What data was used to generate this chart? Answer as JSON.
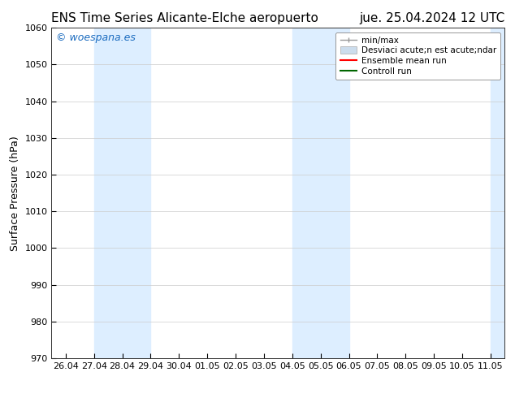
{
  "title_left": "ENS Time Series Alicante-Elche aeropuerto",
  "title_right": "jue. 25.04.2024 12 UTC",
  "ylabel": "Surface Pressure (hPa)",
  "ylim": [
    970,
    1060
  ],
  "yticks": [
    970,
    980,
    990,
    1000,
    1010,
    1020,
    1030,
    1040,
    1050,
    1060
  ],
  "xtick_labels": [
    "26.04",
    "27.04",
    "28.04",
    "29.04",
    "30.04",
    "01.05",
    "02.05",
    "03.05",
    "04.05",
    "05.05",
    "06.05",
    "07.05",
    "08.05",
    "09.05",
    "10.05",
    "11.05"
  ],
  "shade_regions": [
    {
      "xstart": 1,
      "xend": 3,
      "color": "#ddeeff"
    },
    {
      "xstart": 8,
      "xend": 10,
      "color": "#ddeeff"
    },
    {
      "xstart": 15,
      "xend": 16,
      "color": "#ddeeff"
    }
  ],
  "watermark_text": "© woespana.es",
  "watermark_color": "#1a6bbf",
  "background_color": "#ffffff",
  "legend_label_minmax": "min/max",
  "legend_label_std": "Desviaci acute;n est acute;ndar",
  "legend_label_ens": "Ensemble mean run",
  "legend_label_ctrl": "Controll run",
  "legend_color_minmax": "#999999",
  "legend_color_std": "#ccdded",
  "legend_color_ens": "#ff0000",
  "legend_color_ctrl": "#006600",
  "title_fontsize": 11,
  "axis_fontsize": 9,
  "tick_fontsize": 8,
  "legend_fontsize": 7.5
}
